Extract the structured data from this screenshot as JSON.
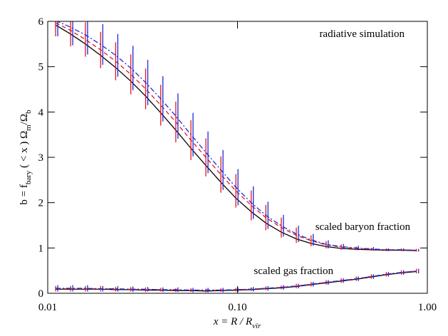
{
  "chart_data": {
    "type": "line",
    "x_label": [
      "x = R / R",
      "vir"
    ],
    "y_label": [
      "b = f",
      "bary",
      " ( < x ) Ω",
      "m",
      "/Ω",
      "b"
    ],
    "annotations": [
      "radiative simulation",
      "scaled baryon fraction",
      "scaled gas fraction"
    ],
    "log_x": true,
    "xlim": [
      0.01,
      1.0
    ],
    "ylim": [
      0,
      6
    ],
    "xticks": [
      0.01,
      {
        "value": 0.1,
        "label": "0.10"
      },
      {
        "value": 1,
        "label": "1.00"
      }
    ],
    "yticks": [
      0,
      1,
      2,
      3,
      4,
      5,
      6
    ],
    "x": [
      0.011,
      0.0132,
      0.0158,
      0.019,
      0.0228,
      0.0274,
      0.0328,
      0.0394,
      0.0473,
      0.0568,
      0.0681,
      0.0817,
      0.098,
      0.118,
      0.141,
      0.17,
      0.204,
      0.244,
      0.293,
      0.352,
      0.422,
      0.507,
      0.608,
      0.73,
      0.876
    ],
    "series": [
      {
        "color": "#000000",
        "dash": "solid",
        "values": [
          5.92,
          5.72,
          5.5,
          5.25,
          4.98,
          4.68,
          4.35,
          3.98,
          3.6,
          3.2,
          2.82,
          2.45,
          2.1,
          1.8,
          1.55,
          1.35,
          1.2,
          1.1,
          1.03,
          0.99,
          0.97,
          0.96,
          0.95,
          0.95,
          0.94
        ]
      },
      {
        "color": "#e8141e",
        "dash": "dashed",
        "values": [
          5.97,
          5.8,
          5.6,
          5.37,
          5.12,
          4.83,
          4.51,
          4.15,
          3.78,
          3.38,
          3.0,
          2.62,
          2.26,
          1.94,
          1.67,
          1.45,
          1.28,
          1.16,
          1.07,
          1.02,
          0.99,
          0.97,
          0.96,
          0.96,
          0.95
        ],
        "errors": [
          0.3,
          0.35,
          0.38,
          0.4,
          0.42,
          0.44,
          0.45,
          0.45,
          0.45,
          0.44,
          0.42,
          0.4,
          0.37,
          0.33,
          0.28,
          0.22,
          0.17,
          0.12,
          0.08,
          0.06,
          0.04,
          0.03,
          0.03,
          0.03,
          0.03
        ]
      },
      {
        "color": "#1a2bd8",
        "dash": "dashdot",
        "values": [
          6.02,
          5.87,
          5.7,
          5.49,
          5.25,
          4.97,
          4.65,
          4.29,
          3.91,
          3.5,
          3.11,
          2.72,
          2.34,
          2.0,
          1.72,
          1.49,
          1.31,
          1.18,
          1.08,
          1.03,
          1.0,
          0.98,
          0.96,
          0.96,
          0.95
        ],
        "errors": [
          0.35,
          0.4,
          0.43,
          0.45,
          0.47,
          0.49,
          0.5,
          0.5,
          0.5,
          0.48,
          0.46,
          0.44,
          0.4,
          0.36,
          0.3,
          0.24,
          0.18,
          0.13,
          0.09,
          0.06,
          0.05,
          0.04,
          0.03,
          0.03,
          0.03
        ]
      },
      {
        "color": "#000000",
        "dash": "solid",
        "values": [
          0.09,
          0.09,
          0.09,
          0.09,
          0.08,
          0.08,
          0.07,
          0.07,
          0.06,
          0.06,
          0.05,
          0.06,
          0.07,
          0.08,
          0.1,
          0.12,
          0.15,
          0.19,
          0.23,
          0.27,
          0.31,
          0.36,
          0.41,
          0.45,
          0.48
        ]
      },
      {
        "color": "#e8141e",
        "dash": "dashed",
        "values": [
          0.1,
          0.1,
          0.1,
          0.1,
          0.09,
          0.09,
          0.08,
          0.08,
          0.07,
          0.07,
          0.06,
          0.07,
          0.08,
          0.09,
          0.11,
          0.13,
          0.16,
          0.2,
          0.24,
          0.28,
          0.32,
          0.37,
          0.42,
          0.46,
          0.49
        ],
        "errors": [
          0.06,
          0.06,
          0.06,
          0.06,
          0.05,
          0.05,
          0.05,
          0.04,
          0.04,
          0.04,
          0.04,
          0.04,
          0.04,
          0.04,
          0.04,
          0.04,
          0.05,
          0.05,
          0.05,
          0.05,
          0.05,
          0.05,
          0.05,
          0.05,
          0.05
        ]
      },
      {
        "color": "#1a2bd8",
        "dash": "dashdot",
        "values": [
          0.11,
          0.11,
          0.11,
          0.1,
          0.1,
          0.09,
          0.09,
          0.08,
          0.08,
          0.07,
          0.07,
          0.07,
          0.08,
          0.09,
          0.11,
          0.13,
          0.16,
          0.2,
          0.24,
          0.28,
          0.32,
          0.37,
          0.42,
          0.46,
          0.49
        ],
        "errors": [
          0.07,
          0.07,
          0.07,
          0.06,
          0.06,
          0.06,
          0.05,
          0.05,
          0.05,
          0.05,
          0.05,
          0.05,
          0.05,
          0.05,
          0.05,
          0.05,
          0.05,
          0.05,
          0.05,
          0.05,
          0.05,
          0.05,
          0.05,
          0.05,
          0.05
        ]
      }
    ]
  }
}
